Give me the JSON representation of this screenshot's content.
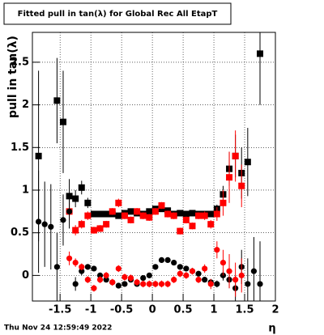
{
  "chart_data": {
    "type": "errorbar-scatter",
    "title": "Fitted pull in tan(λ) for Global Rec All EtapT",
    "y_label": "pull in tan(λ)",
    "x_label": "η",
    "footer": "Thu Nov 24 12:59:49 2022",
    "xlim": [
      -1.95,
      2
    ],
    "ylim": [
      -0.3,
      2.85
    ],
    "xticks": [
      -1.5,
      -1,
      -0.5,
      0,
      0.5,
      1,
      1.5,
      2
    ],
    "yticks": [
      0,
      0.5,
      1,
      1.5,
      2,
      2.5
    ],
    "grid": true,
    "x": [
      -1.85,
      -1.75,
      -1.65,
      -1.55,
      -1.45,
      -1.35,
      -1.25,
      -1.15,
      -1.05,
      -0.95,
      -0.85,
      -0.75,
      -0.65,
      -0.55,
      -0.45,
      -0.35,
      -0.25,
      -0.15,
      -0.05,
      0.05,
      0.15,
      0.25,
      0.35,
      0.45,
      0.55,
      0.65,
      0.75,
      0.85,
      0.95,
      1.05,
      1.15,
      1.25,
      1.35,
      1.45,
      1.55,
      1.65,
      1.75
    ],
    "series": [
      {
        "color": "#000000",
        "marker": "square",
        "values": [
          1.4,
          null,
          null,
          2.05,
          1.8,
          0.93,
          0.9,
          1.03,
          0.85,
          0.72,
          0.72,
          0.72,
          0.72,
          0.7,
          0.73,
          0.75,
          0.73,
          0.72,
          0.75,
          0.78,
          0.78,
          0.76,
          0.72,
          0.73,
          0.72,
          0.73,
          0.72,
          0.72,
          0.72,
          0.78,
          0.95,
          1.25,
          1.4,
          1.2,
          1.33,
          null,
          2.6
        ],
        "errors": [
          1.0,
          null,
          null,
          0.5,
          0.6,
          0.2,
          0.1,
          0.08,
          0.06,
          0.03,
          0.03,
          0.03,
          0.03,
          0.03,
          0.03,
          0.03,
          0.03,
          0.03,
          0.03,
          0.03,
          0.03,
          0.03,
          0.03,
          0.03,
          0.03,
          0.03,
          0.03,
          0.03,
          0.03,
          0.05,
          0.1,
          0.2,
          0.25,
          0.3,
          0.4,
          null,
          0.6
        ]
      },
      {
        "color": "#ff0000",
        "marker": "square",
        "values": [
          null,
          null,
          null,
          null,
          null,
          0.75,
          0.53,
          0.6,
          0.7,
          0.53,
          0.55,
          0.6,
          0.75,
          0.85,
          0.7,
          0.65,
          0.75,
          0.7,
          0.68,
          0.75,
          0.82,
          0.72,
          0.7,
          0.52,
          0.65,
          0.58,
          0.7,
          0.7,
          0.6,
          0.72,
          0.85,
          1.15,
          1.4,
          1.05,
          null,
          null,
          null
        ],
        "errors": [
          null,
          null,
          null,
          null,
          null,
          0.1,
          0.06,
          0.05,
          0.05,
          0.04,
          0.04,
          0.04,
          0.04,
          0.05,
          0.04,
          0.04,
          0.04,
          0.04,
          0.04,
          0.04,
          0.04,
          0.04,
          0.04,
          0.04,
          0.04,
          0.04,
          0.04,
          0.05,
          0.05,
          0.08,
          0.15,
          0.3,
          0.3,
          0.25,
          null,
          null,
          null
        ]
      },
      {
        "color": "#000000",
        "marker": "circle",
        "values": [
          0.63,
          0.6,
          0.57,
          0.1,
          0.65,
          0.75,
          -0.1,
          0.05,
          0.1,
          0.08,
          0.0,
          -0.05,
          -0.08,
          -0.12,
          -0.1,
          -0.05,
          -0.1,
          -0.03,
          0.0,
          0.1,
          0.18,
          0.18,
          0.15,
          0.1,
          0.08,
          0.05,
          0.02,
          -0.05,
          -0.08,
          -0.1,
          0.0,
          -0.05,
          -0.15,
          0.1,
          -0.1,
          0.05,
          -0.1
        ],
        "errors": [
          0.6,
          0.5,
          0.5,
          0.4,
          0.3,
          0.2,
          0.08,
          0.05,
          0.03,
          0.02,
          0.02,
          0.02,
          0.02,
          0.02,
          0.02,
          0.02,
          0.02,
          0.02,
          0.02,
          0.02,
          0.02,
          0.02,
          0.02,
          0.02,
          0.02,
          0.02,
          0.02,
          0.02,
          0.03,
          0.04,
          0.06,
          0.1,
          0.15,
          0.2,
          0.3,
          0.4,
          0.5
        ]
      },
      {
        "color": "#ff0000",
        "marker": "circle",
        "values": [
          null,
          null,
          null,
          null,
          null,
          0.2,
          0.15,
          0.1,
          -0.05,
          -0.15,
          -0.05,
          0.0,
          -0.08,
          0.08,
          -0.02,
          -0.03,
          -0.08,
          -0.1,
          -0.1,
          -0.1,
          -0.1,
          -0.1,
          -0.05,
          0.02,
          0.0,
          0.05,
          -0.05,
          0.08,
          -0.1,
          0.3,
          0.15,
          0.05,
          -0.05,
          0.0,
          null,
          null,
          null
        ],
        "errors": [
          null,
          null,
          null,
          null,
          null,
          0.08,
          0.05,
          0.04,
          0.04,
          0.04,
          0.04,
          0.04,
          0.04,
          0.04,
          0.04,
          0.04,
          0.04,
          0.04,
          0.04,
          0.04,
          0.04,
          0.04,
          0.04,
          0.04,
          0.04,
          0.04,
          0.04,
          0.05,
          0.06,
          0.1,
          0.15,
          0.2,
          0.2,
          0.2,
          null,
          null,
          null
        ]
      }
    ]
  }
}
